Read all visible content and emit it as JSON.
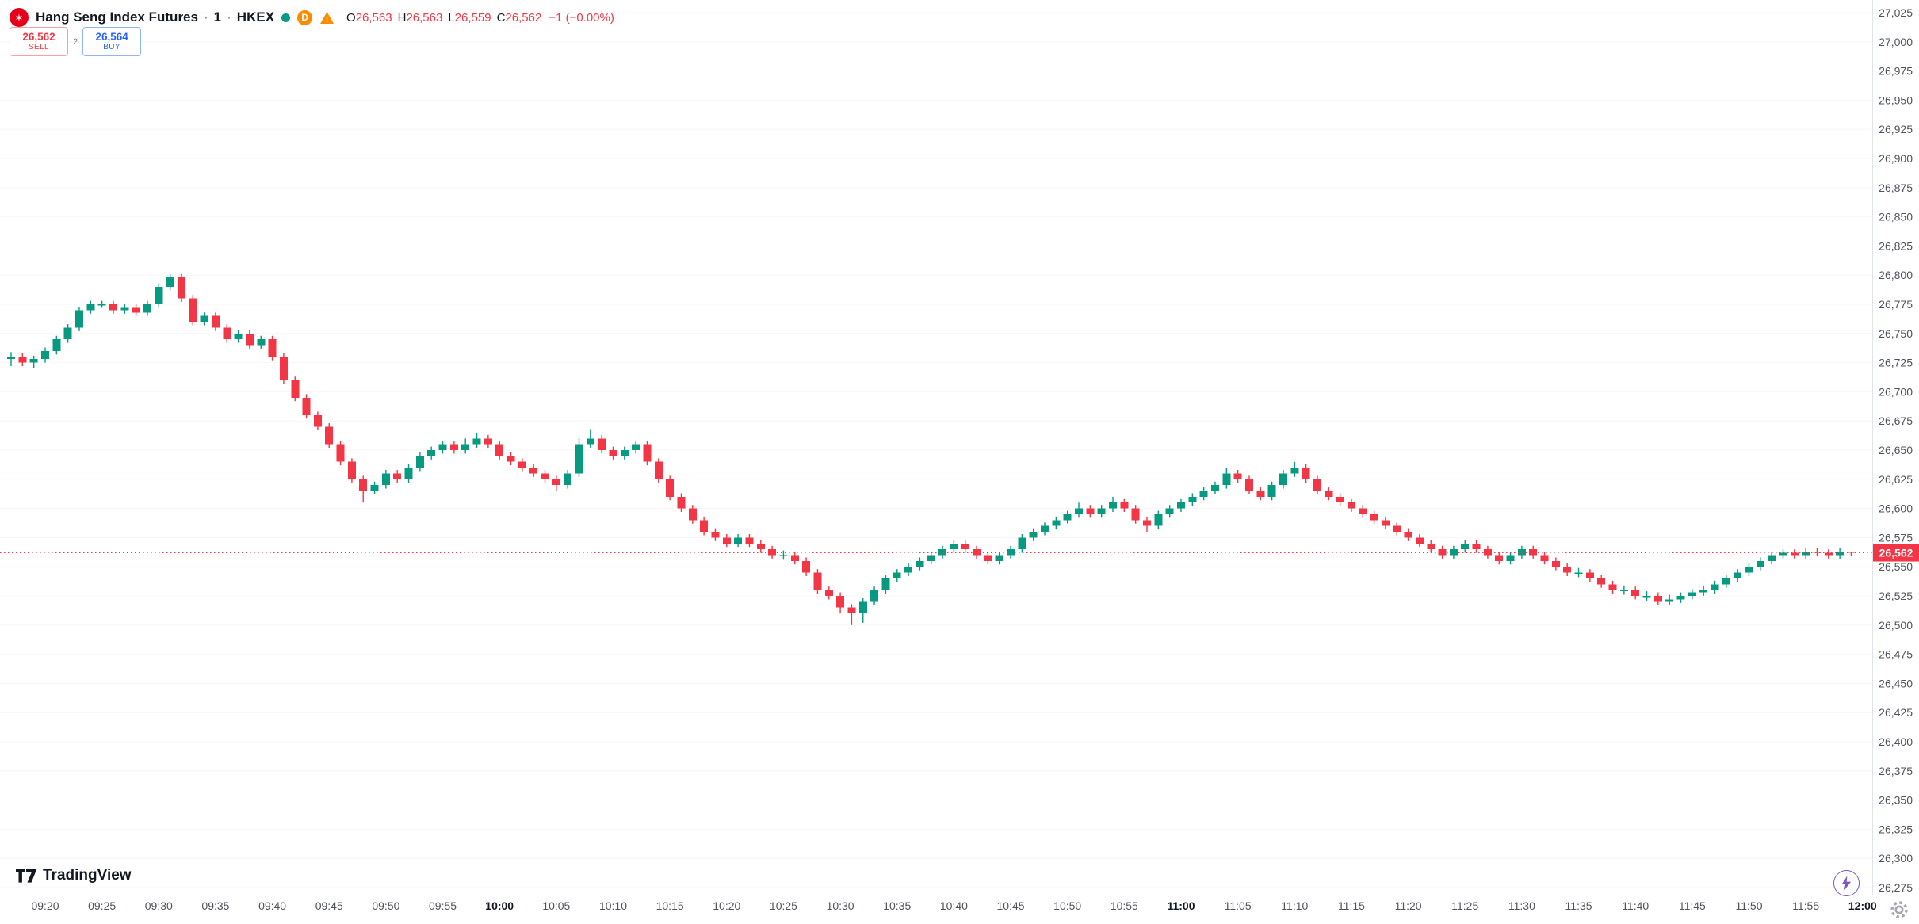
{
  "header": {
    "symbol": "Hang Seng Index Futures",
    "separator": "·",
    "interval": "1",
    "exchange": "HKEX",
    "delayed_badge": "D",
    "alert_glyph": "!",
    "ohlc": {
      "o_label": "O",
      "o_value": "26,563",
      "h_label": "H",
      "h_value": "26,563",
      "l_label": "L",
      "l_value": "26,559",
      "c_label": "C",
      "c_value": "26,562",
      "change": "−1 (−0.00%)"
    }
  },
  "trade_panel": {
    "sell_price": "26,562",
    "sell_label": "SELL",
    "spread": "2",
    "buy_price": "26,564",
    "buy_label": "BUY"
  },
  "watermark": {
    "brand": "TradingView"
  },
  "colors": {
    "up": "#089981",
    "down": "#f23645",
    "buy_accent": "#2962ff",
    "sell_accent": "#f23645",
    "axis_text": "#131722",
    "axis_minor_text": "#50535e",
    "separator_line": "#e0e3eb",
    "last_price_bg": "#f23645",
    "lightning_accent": "#7e57c2",
    "gear_gray": "#9598a1"
  },
  "chart_data": {
    "type": "candlestick",
    "title": "Hang Seng Index Futures, 1 minute, HKEX",
    "interval_minutes": 1,
    "first_candle_time": "09:17",
    "ylim": [
      26275,
      27025
    ],
    "y_tick_step": 25,
    "last_price": 26562,
    "last_price_label": "26,562",
    "up_color": "#089981",
    "down_color": "#f23645",
    "time_ticks": [
      "09:20",
      "09:25",
      "09:30",
      "09:35",
      "09:40",
      "09:45",
      "09:50",
      "09:55",
      "10:00",
      "10:05",
      "10:10",
      "10:15",
      "10:20",
      "10:25",
      "10:30",
      "10:35",
      "10:40",
      "10:45",
      "10:50",
      "10:55",
      "11:00",
      "11:05",
      "11:10",
      "11:15",
      "11:20",
      "11:25",
      "11:30",
      "11:35",
      "11:40",
      "11:45",
      "11:50",
      "11:55",
      "12:00"
    ],
    "candles": [
      [
        26728,
        26734,
        26722,
        26730
      ],
      [
        26730,
        26733,
        26722,
        26725
      ],
      [
        26725,
        26731,
        26720,
        26728
      ],
      [
        26728,
        26738,
        26725,
        26735
      ],
      [
        26735,
        26748,
        26732,
        26745
      ],
      [
        26745,
        26758,
        26742,
        26755
      ],
      [
        26755,
        26773,
        26752,
        26770
      ],
      [
        26770,
        26778,
        26767,
        26775
      ],
      [
        26775,
        26778,
        26772,
        26775
      ],
      [
        26775,
        26778,
        26767,
        26770
      ],
      [
        26770,
        26775,
        26767,
        26772
      ],
      [
        26772,
        26775,
        26765,
        26768
      ],
      [
        26768,
        26778,
        26765,
        26775
      ],
      [
        26775,
        26793,
        26772,
        26790
      ],
      [
        26790,
        26801,
        26787,
        26798
      ],
      [
        26798,
        26801,
        26777,
        26780
      ],
      [
        26780,
        26783,
        26757,
        26760
      ],
      [
        26760,
        26768,
        26757,
        26765
      ],
      [
        26765,
        26768,
        26752,
        26755
      ],
      [
        26755,
        26758,
        26742,
        26745
      ],
      [
        26745,
        26753,
        26742,
        26750
      ],
      [
        26750,
        26753,
        26737,
        26740
      ],
      [
        26740,
        26748,
        26737,
        26745
      ],
      [
        26745,
        26748,
        26727,
        26730
      ],
      [
        26730,
        26733,
        26707,
        26710
      ],
      [
        26710,
        26713,
        26692,
        26695
      ],
      [
        26695,
        26698,
        26677,
        26680
      ],
      [
        26680,
        26683,
        26667,
        26670
      ],
      [
        26670,
        26673,
        26652,
        26655
      ],
      [
        26655,
        26658,
        26637,
        26640
      ],
      [
        26640,
        26643,
        26622,
        26625
      ],
      [
        26625,
        26628,
        26605,
        26615
      ],
      [
        26615,
        26623,
        26612,
        26620
      ],
      [
        26620,
        26633,
        26617,
        26630
      ],
      [
        26630,
        26633,
        26622,
        26625
      ],
      [
        26625,
        26638,
        26622,
        26635
      ],
      [
        26635,
        26648,
        26632,
        26645
      ],
      [
        26645,
        26653,
        26642,
        26650
      ],
      [
        26650,
        26658,
        26647,
        26655
      ],
      [
        26655,
        26658,
        26647,
        26650
      ],
      [
        26650,
        26660,
        26647,
        26655
      ],
      [
        26655,
        26665,
        26652,
        26660
      ],
      [
        26660,
        26663,
        26652,
        26655
      ],
      [
        26655,
        26658,
        26642,
        26645
      ],
      [
        26645,
        26648,
        26637,
        26640
      ],
      [
        26640,
        26643,
        26632,
        26635
      ],
      [
        26635,
        26638,
        26627,
        26630
      ],
      [
        26630,
        26633,
        26622,
        26625
      ],
      [
        26625,
        26628,
        26615,
        26620
      ],
      [
        26620,
        26633,
        26617,
        26630
      ],
      [
        26630,
        26660,
        26627,
        26655
      ],
      [
        26655,
        26668,
        26652,
        26660
      ],
      [
        26660,
        26663,
        26647,
        26650
      ],
      [
        26650,
        26653,
        26642,
        26645
      ],
      [
        26645,
        26653,
        26642,
        26650
      ],
      [
        26650,
        26658,
        26647,
        26655
      ],
      [
        26655,
        26658,
        26637,
        26640
      ],
      [
        26640,
        26643,
        26622,
        26625
      ],
      [
        26625,
        26628,
        26607,
        26610
      ],
      [
        26610,
        26613,
        26597,
        26600
      ],
      [
        26600,
        26603,
        26587,
        26590
      ],
      [
        26590,
        26593,
        26577,
        26580
      ],
      [
        26580,
        26583,
        26572,
        26575
      ],
      [
        26575,
        26578,
        26567,
        26570
      ],
      [
        26570,
        26578,
        26567,
        26575
      ],
      [
        26575,
        26578,
        26567,
        26570
      ],
      [
        26570,
        26573,
        26562,
        26565
      ],
      [
        26565,
        26568,
        26557,
        26560
      ],
      [
        26560,
        26564,
        26556,
        26560
      ],
      [
        26560,
        26563,
        26552,
        26555
      ],
      [
        26555,
        26558,
        26542,
        26545
      ],
      [
        26545,
        26548,
        26527,
        26530
      ],
      [
        26530,
        26533,
        26522,
        26525
      ],
      [
        26525,
        26528,
        26510,
        26515
      ],
      [
        26515,
        26518,
        26500,
        26510
      ],
      [
        26510,
        26523,
        26502,
        26520
      ],
      [
        26520,
        26533,
        26517,
        26530
      ],
      [
        26530,
        26543,
        26527,
        26540
      ],
      [
        26540,
        26548,
        26537,
        26545
      ],
      [
        26545,
        26553,
        26542,
        26550
      ],
      [
        26550,
        26558,
        26547,
        26555
      ],
      [
        26555,
        26563,
        26552,
        26560
      ],
      [
        26560,
        26568,
        26557,
        26565
      ],
      [
        26565,
        26573,
        26562,
        26570
      ],
      [
        26570,
        26573,
        26562,
        26565
      ],
      [
        26565,
        26568,
        26557,
        26560
      ],
      [
        26560,
        26563,
        26552,
        26555
      ],
      [
        26555,
        26563,
        26552,
        26560
      ],
      [
        26560,
        26568,
        26557,
        26565
      ],
      [
        26565,
        26578,
        26562,
        26575
      ],
      [
        26575,
        26583,
        26572,
        26580
      ],
      [
        26580,
        26588,
        26577,
        26585
      ],
      [
        26585,
        26593,
        26582,
        26590
      ],
      [
        26590,
        26598,
        26587,
        26595
      ],
      [
        26595,
        26605,
        26592,
        26600
      ],
      [
        26600,
        26603,
        26592,
        26595
      ],
      [
        26595,
        26603,
        26592,
        26600
      ],
      [
        26600,
        26610,
        26597,
        26605
      ],
      [
        26605,
        26608,
        26597,
        26600
      ],
      [
        26600,
        26603,
        26587,
        26590
      ],
      [
        26590,
        26593,
        26580,
        26585
      ],
      [
        26585,
        26598,
        26582,
        26595
      ],
      [
        26595,
        26603,
        26592,
        26600
      ],
      [
        26600,
        26608,
        26597,
        26605
      ],
      [
        26605,
        26613,
        26602,
        26610
      ],
      [
        26610,
        26618,
        26607,
        26615
      ],
      [
        26615,
        26623,
        26612,
        26620
      ],
      [
        26620,
        26635,
        26617,
        26630
      ],
      [
        26630,
        26633,
        26622,
        26625
      ],
      [
        26625,
        26628,
        26612,
        26615
      ],
      [
        26615,
        26618,
        26607,
        26610
      ],
      [
        26610,
        26623,
        26607,
        26620
      ],
      [
        26620,
        26633,
        26617,
        26630
      ],
      [
        26630,
        26640,
        26627,
        26635
      ],
      [
        26635,
        26638,
        26622,
        26625
      ],
      [
        26625,
        26628,
        26612,
        26615
      ],
      [
        26615,
        26618,
        26607,
        26610
      ],
      [
        26610,
        26613,
        26602,
        26605
      ],
      [
        26605,
        26608,
        26597,
        26600
      ],
      [
        26600,
        26603,
        26592,
        26595
      ],
      [
        26595,
        26598,
        26587,
        26590
      ],
      [
        26590,
        26593,
        26582,
        26585
      ],
      [
        26585,
        26588,
        26577,
        26580
      ],
      [
        26580,
        26583,
        26572,
        26575
      ],
      [
        26575,
        26578,
        26567,
        26570
      ],
      [
        26570,
        26573,
        26562,
        26565
      ],
      [
        26565,
        26568,
        26557,
        26560
      ],
      [
        26560,
        26568,
        26557,
        26565
      ],
      [
        26565,
        26573,
        26562,
        26570
      ],
      [
        26570,
        26573,
        26562,
        26565
      ],
      [
        26565,
        26568,
        26557,
        26560
      ],
      [
        26560,
        26563,
        26552,
        26555
      ],
      [
        26555,
        26563,
        26552,
        26560
      ],
      [
        26560,
        26568,
        26557,
        26565
      ],
      [
        26565,
        26568,
        26557,
        26560
      ],
      [
        26560,
        26563,
        26552,
        26555
      ],
      [
        26555,
        26558,
        26547,
        26550
      ],
      [
        26550,
        26553,
        26542,
        26545
      ],
      [
        26545,
        26549,
        26541,
        26545
      ],
      [
        26545,
        26548,
        26537,
        26540
      ],
      [
        26540,
        26543,
        26532,
        26535
      ],
      [
        26535,
        26538,
        26527,
        26530
      ],
      [
        26530,
        26534,
        26526,
        26530
      ],
      [
        26530,
        26533,
        26522,
        26525
      ],
      [
        26525,
        26529,
        26521,
        26525
      ],
      [
        26525,
        26528,
        26517,
        26520
      ],
      [
        26520,
        26526,
        26517,
        26522
      ],
      [
        26522,
        26528,
        26519,
        26525
      ],
      [
        26525,
        26531,
        26522,
        26528
      ],
      [
        26528,
        26534,
        26525,
        26530
      ],
      [
        26530,
        26538,
        26527,
        26535
      ],
      [
        26535,
        26543,
        26532,
        26540
      ],
      [
        26540,
        26548,
        26537,
        26545
      ],
      [
        26545,
        26553,
        26542,
        26550
      ],
      [
        26550,
        26558,
        26547,
        26555
      ],
      [
        26555,
        26563,
        26552,
        26560
      ],
      [
        26560,
        26565,
        26557,
        26562
      ],
      [
        26562,
        26565,
        26557,
        26560
      ],
      [
        26560,
        26566,
        26557,
        26563
      ],
      [
        26563,
        26566,
        26559,
        26562
      ],
      [
        26562,
        26565,
        26557,
        26560
      ],
      [
        26560,
        26566,
        26557,
        26563
      ],
      [
        26563,
        26563,
        26559,
        26562
      ]
    ]
  }
}
